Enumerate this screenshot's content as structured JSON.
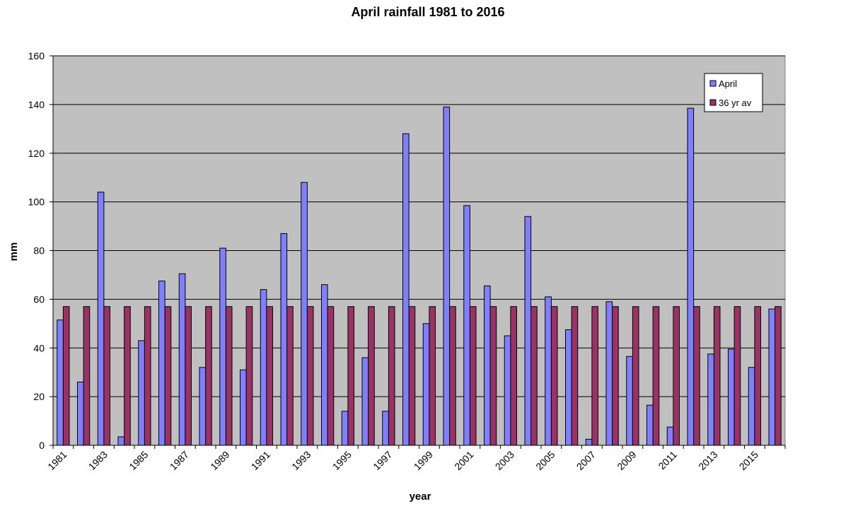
{
  "chart_data": {
    "type": "bar",
    "title": "April rainfall 1981 to 2016",
    "xlabel": "year",
    "ylabel": "mm",
    "ylim": [
      0,
      160
    ],
    "yticks": [
      0,
      20,
      40,
      60,
      80,
      100,
      120,
      140,
      160
    ],
    "grid": true,
    "legend_position": "top-right",
    "categories": [
      "1981",
      "1982",
      "1983",
      "1984",
      "1985",
      "1986",
      "1987",
      "1988",
      "1989",
      "1990",
      "1991",
      "1992",
      "1993",
      "1994",
      "1995",
      "1996",
      "1997",
      "1998",
      "1999",
      "2000",
      "2001",
      "2002",
      "2003",
      "2004",
      "2005",
      "2006",
      "2007",
      "2008",
      "2009",
      "2010",
      "2011",
      "2012",
      "2013",
      "2014",
      "2015",
      "2016"
    ],
    "xtick_labels": [
      "1981",
      "1983",
      "1985",
      "1987",
      "1989",
      "1991",
      "1993",
      "1995",
      "1997",
      "1999",
      "2001",
      "2003",
      "2005",
      "2007",
      "2009",
      "2011",
      "2013",
      "2015"
    ],
    "series": [
      {
        "name": "April",
        "color": "#8080ff",
        "values": [
          51.5,
          26,
          104,
          3.5,
          43,
          67.5,
          70.5,
          32,
          81,
          31,
          64,
          87,
          108,
          66,
          14,
          36,
          14,
          128,
          50,
          139,
          98.5,
          65.5,
          45,
          94,
          61,
          47.5,
          2.5,
          59,
          36.5,
          16.5,
          7.5,
          138.5,
          37.5,
          39.5,
          32,
          56
        ]
      },
      {
        "name": "36 yr av",
        "color": "#993366",
        "values": [
          57,
          57,
          57,
          57,
          57,
          57,
          57,
          57,
          57,
          57,
          57,
          57,
          57,
          57,
          57,
          57,
          57,
          57,
          57,
          57,
          57,
          57,
          57,
          57,
          57,
          57,
          57,
          57,
          57,
          57,
          57,
          57,
          57,
          57,
          57,
          57
        ]
      }
    ]
  },
  "colors": {
    "plot_background": "#c0c0c0",
    "gridline": "#000000"
  }
}
